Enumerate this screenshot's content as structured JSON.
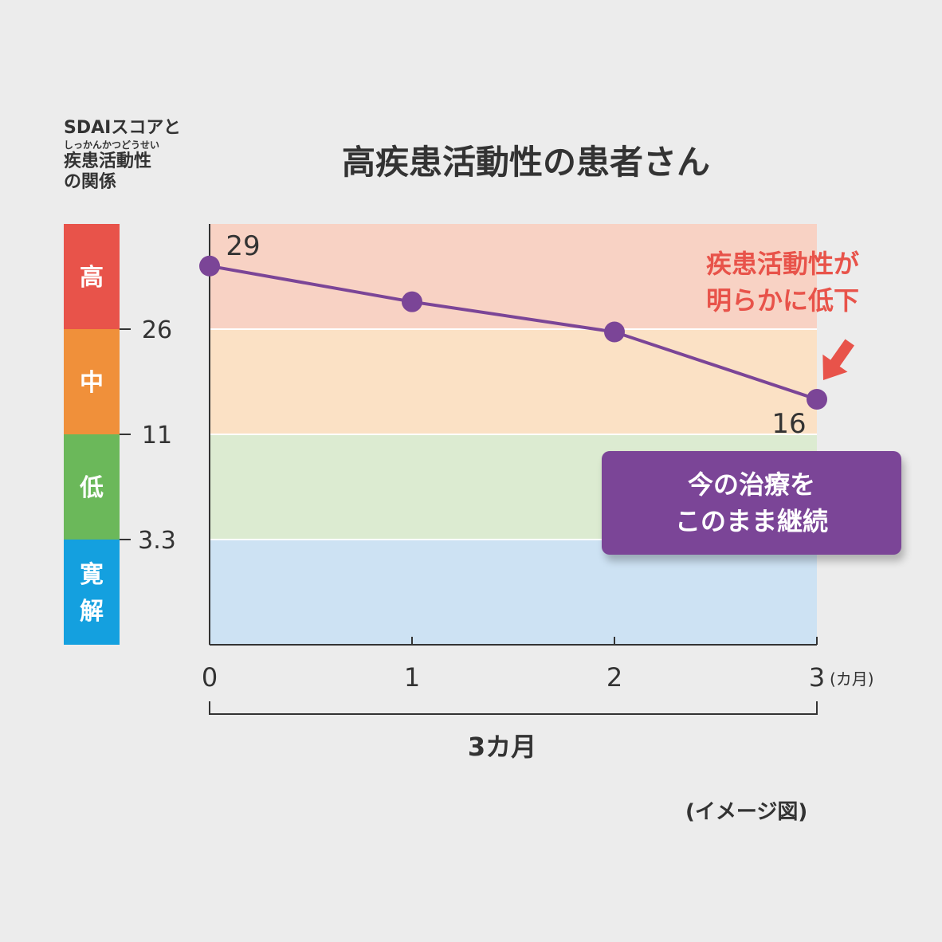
{
  "side_title": {
    "line1": "SDAIスコアと",
    "ruby": "しっかんかつどうせい",
    "line2": "疾患活動性",
    "line3": "の関係"
  },
  "chart_data": {
    "type": "line",
    "title": "高疾患活動性の患者さん",
    "x": [
      0,
      1,
      2,
      3
    ],
    "x_tick_labels": [
      "0",
      "1",
      "2",
      "3"
    ],
    "x_unit_label": "(カ月)",
    "xlim": [
      0,
      3
    ],
    "y_band_boundaries": [
      26,
      11,
      3.3
    ],
    "y_band_scale": "categorical-equal-height",
    "series": [
      {
        "values": [
          29,
          27.3,
          25.6,
          16
        ]
      }
    ],
    "data_labels": [
      {
        "index": 0,
        "text": "29"
      },
      {
        "index": 3,
        "text": "16"
      }
    ],
    "bands": [
      {
        "label": "高",
        "color": "#e8534a",
        "bg": "#f8d2c4"
      },
      {
        "label": "中",
        "color": "#f0903a",
        "bg": "#fbe1c5"
      },
      {
        "label": "低",
        "color": "#6bb85a",
        "bg": "#dcebd1"
      },
      {
        "label": "寛解",
        "color": "#14a0df",
        "bg": "#cde2f3"
      }
    ],
    "line_color": "#7b4597",
    "grid": false,
    "legend": "none",
    "span_label": "3カ月"
  },
  "annotation": {
    "line1": "疾患活動性が",
    "line2": "明らかに低下",
    "color": "#e8534a"
  },
  "callout": {
    "line1": "今の治療を",
    "line2": "このまま継続",
    "bg": "#7b4597"
  },
  "note": "(イメージ図)"
}
